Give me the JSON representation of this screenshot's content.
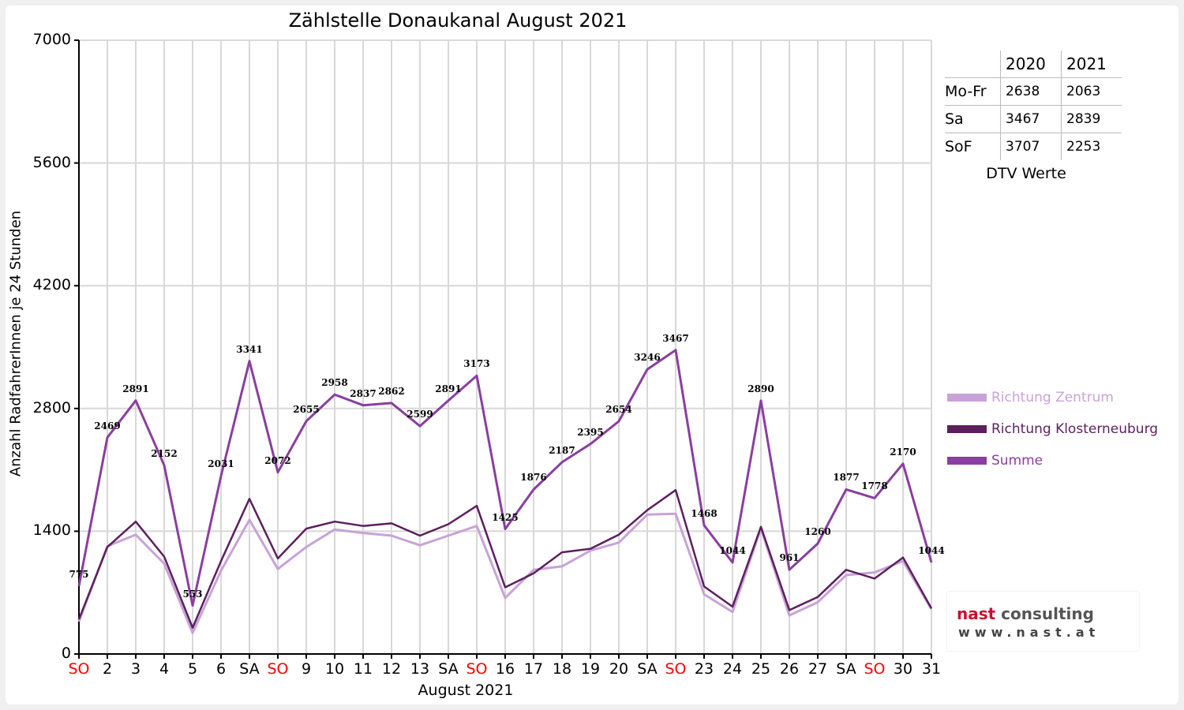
{
  "chart_data": {
    "type": "line",
    "title": "Zählstelle Donaukanal August 2021",
    "xlabel": "August 2021",
    "ylabel": "Anzahl RadfahrerInnen je 24 Stunden",
    "ylim": [
      0,
      7000
    ],
    "yticks": [
      "0",
      "1400",
      "2800",
      "4200",
      "5600",
      "7000"
    ],
    "ytick_values": [
      0,
      1400,
      2800,
      4200,
      5600,
      7000
    ],
    "categories": [
      "SO",
      "2",
      "3",
      "4",
      "5",
      "6",
      "SA",
      "SO",
      "9",
      "10",
      "11",
      "12",
      "13",
      "SA",
      "SO",
      "16",
      "17",
      "18",
      "19",
      "20",
      "SA",
      "SO",
      "23",
      "24",
      "25",
      "26",
      "27",
      "SA",
      "SO",
      "30",
      "31"
    ],
    "sunday_flags": [
      true,
      false,
      false,
      false,
      false,
      false,
      false,
      true,
      false,
      false,
      false,
      false,
      false,
      false,
      true,
      false,
      false,
      false,
      false,
      false,
      false,
      true,
      false,
      false,
      false,
      false,
      false,
      false,
      true,
      false,
      false
    ],
    "grid": true,
    "legend_position": "right",
    "series": [
      {
        "name": "Richtung Zentrum",
        "color": "#c8a2d8",
        "values": [
          370,
          1230,
          1360,
          1030,
          240,
          950,
          1530,
          970,
          1220,
          1420,
          1380,
          1350,
          1240,
          1350,
          1460,
          640,
          960,
          1000,
          1180,
          1270,
          1590,
          1600,
          680,
          480,
          1430,
          440,
          590,
          900,
          930,
          1060,
          510
        ]
      },
      {
        "name": "Richtung Klosterneuburg",
        "color": "#5c1f5e",
        "values": [
          395,
          1220,
          1510,
          1110,
          300,
          1060,
          1770,
          1090,
          1430,
          1510,
          1460,
          1490,
          1350,
          1480,
          1690,
          760,
          920,
          1160,
          1200,
          1360,
          1640,
          1870,
          770,
          540,
          1450,
          500,
          650,
          960,
          860,
          1100,
          520
        ]
      },
      {
        "name": "Summe",
        "color": "#8a3ea0",
        "values": [
          775,
          2469,
          2891,
          2152,
          553,
          2031,
          3341,
          2072,
          2655,
          2958,
          2837,
          2862,
          2599,
          2891,
          3173,
          1425,
          1876,
          2187,
          2395,
          2654,
          3246,
          3467,
          1468,
          1044,
          2890,
          961,
          1260,
          1877,
          1778,
          2170,
          1044
        ]
      }
    ],
    "data_labels": [
      "775",
      "2469",
      "2891",
      "2152",
      "553",
      "2031",
      "3341",
      "2072",
      "2655",
      "2958",
      "2837",
      "2862",
      "2599",
      "2891",
      "3173",
      "1425",
      "1876",
      "2187",
      "2395",
      "2654",
      "3246",
      "3467",
      "1468",
      "1044",
      "2890",
      "961",
      "1260",
      "1877",
      "1778",
      "2170",
      "1044"
    ]
  },
  "dtv_table": {
    "headers": [
      "",
      "2020",
      "2021"
    ],
    "rows": [
      [
        "Mo-Fr",
        "2638",
        "2063"
      ],
      [
        "Sa",
        "3467",
        "2839"
      ],
      [
        "SoF",
        "3707",
        "2253"
      ]
    ],
    "caption": "DTV Werte"
  },
  "logo": {
    "name_part1": "nast",
    "name_part2": " consulting",
    "url": "www.nast.at"
  },
  "colors": {
    "sunday": "#ff0000",
    "grid": "#d8d8d8",
    "axis": "#000000"
  }
}
